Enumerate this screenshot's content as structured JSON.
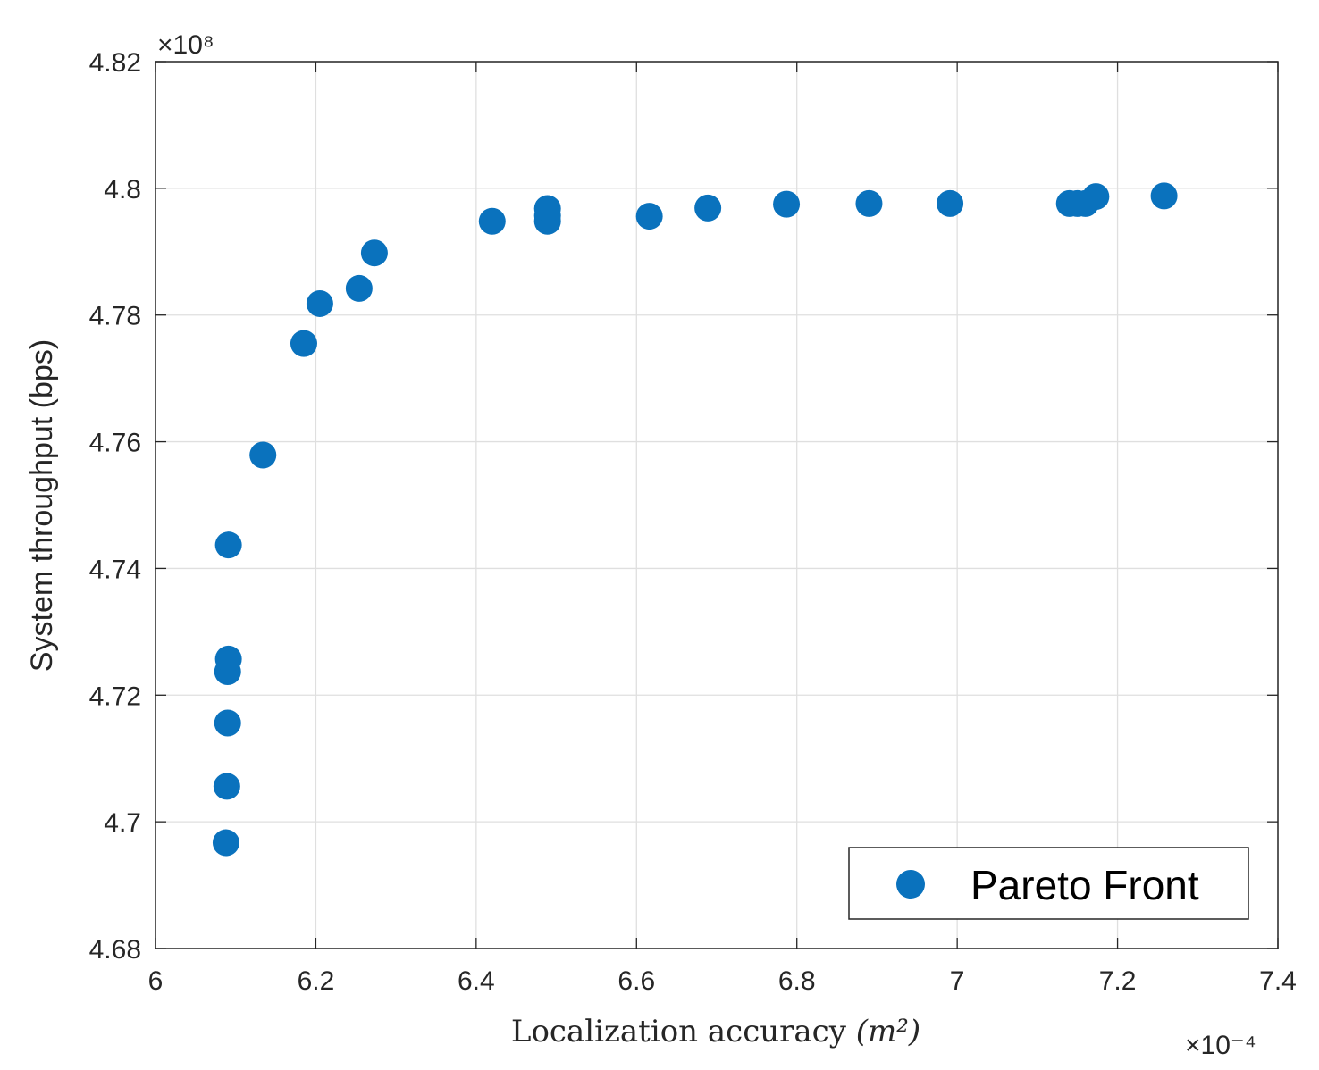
{
  "chart_data": {
    "type": "scatter",
    "title": "",
    "xlabel": "Localization accuracy",
    "xlabel_unit": "(m²)",
    "ylabel": "System throughput (bps)",
    "x_multiplier": "×10⁻⁴",
    "y_multiplier": "×10⁸",
    "xlim": [
      6.0,
      7.4
    ],
    "ylim": [
      4.68,
      4.82
    ],
    "x_ticks": [
      6,
      6.2,
      6.4,
      6.6,
      6.8,
      7,
      7.2,
      7.4
    ],
    "x_tick_labels": [
      "6",
      "6.2",
      "6.4",
      "6.6",
      "6.8",
      "7",
      "7.2",
      "7.4"
    ],
    "y_ticks": [
      4.68,
      4.7,
      4.72,
      4.74,
      4.76,
      4.78,
      4.8,
      4.82
    ],
    "y_tick_labels": [
      "4.68",
      "4.7",
      "4.72",
      "4.74",
      "4.76",
      "4.78",
      "4.8",
      "4.82"
    ],
    "grid": true,
    "legend_position": "bottom-right",
    "series": [
      {
        "name": "Pareto Front",
        "color": "#0a72bd",
        "points": [
          {
            "x": 6.088,
            "y": 4.6967
          },
          {
            "x": 6.089,
            "y": 4.7056
          },
          {
            "x": 6.09,
            "y": 4.7156
          },
          {
            "x": 6.09,
            "y": 4.7237
          },
          {
            "x": 6.091,
            "y": 4.7257
          },
          {
            "x": 6.091,
            "y": 4.7437
          },
          {
            "x": 6.134,
            "y": 4.7579
          },
          {
            "x": 6.185,
            "y": 4.7755
          },
          {
            "x": 6.205,
            "y": 4.7818
          },
          {
            "x": 6.254,
            "y": 4.7842
          },
          {
            "x": 6.273,
            "y": 4.7898
          },
          {
            "x": 6.42,
            "y": 4.7948
          },
          {
            "x": 6.489,
            "y": 4.7948
          },
          {
            "x": 6.489,
            "y": 4.7957
          },
          {
            "x": 6.489,
            "y": 4.7968
          },
          {
            "x": 6.616,
            "y": 4.7956
          },
          {
            "x": 6.689,
            "y": 4.7969
          },
          {
            "x": 6.787,
            "y": 4.7975
          },
          {
            "x": 6.89,
            "y": 4.7976
          },
          {
            "x": 6.991,
            "y": 4.7976
          },
          {
            "x": 7.14,
            "y": 4.7976
          },
          {
            "x": 7.15,
            "y": 4.7976
          },
          {
            "x": 7.16,
            "y": 4.7976
          },
          {
            "x": 7.173,
            "y": 4.7987
          },
          {
            "x": 7.258,
            "y": 4.7988
          }
        ]
      }
    ]
  }
}
